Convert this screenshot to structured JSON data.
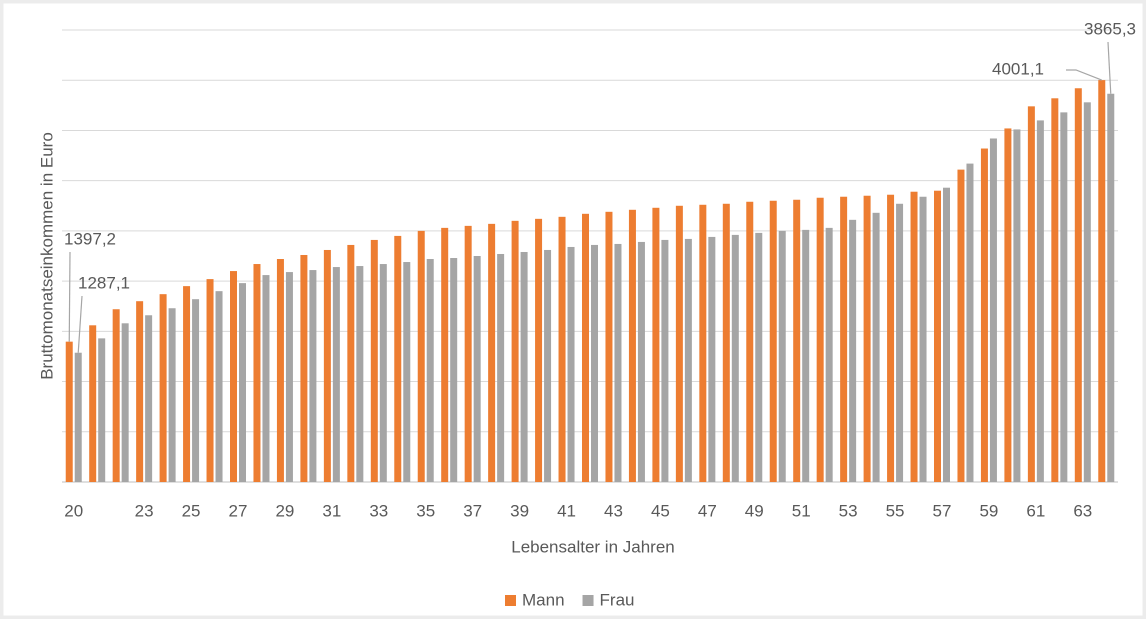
{
  "chart_data": {
    "type": "bar",
    "x_label": "Lebensalter in Jahren",
    "y_label": "Bruttomonatseinkommen in Euro",
    "categories": [
      "20",
      null,
      null,
      "23",
      null,
      "25",
      null,
      "27",
      null,
      "29",
      null,
      "31",
      null,
      "33",
      null,
      "35",
      null,
      "37",
      null,
      "39",
      null,
      "41",
      null,
      "43",
      null,
      "45",
      null,
      "47",
      null,
      "49",
      null,
      "51",
      null,
      "53",
      null,
      "55",
      null,
      "57",
      null,
      "59",
      null,
      "61",
      null,
      "63",
      null
    ],
    "series": [
      {
        "name": "Mann",
        "color": "#ed7d31",
        "values": [
          1397.2,
          1560,
          1720,
          1800,
          1870,
          1950,
          2020,
          2100,
          2170,
          2220,
          2260,
          2310,
          2360,
          2410,
          2450,
          2500,
          2530,
          2550,
          2570,
          2600,
          2620,
          2640,
          2670,
          2690,
          2710,
          2730,
          2750,
          2760,
          2770,
          2790,
          2800,
          2810,
          2830,
          2840,
          2850,
          2860,
          2890,
          2900,
          3110,
          3320,
          3520,
          3740,
          3820,
          3920,
          4001.1
        ],
        "value_labels": [
          "1397,2",
          null,
          null,
          null,
          null,
          null,
          null,
          null,
          null,
          null,
          null,
          null,
          null,
          null,
          null,
          null,
          null,
          null,
          null,
          null,
          null,
          null,
          null,
          null,
          null,
          null,
          null,
          null,
          null,
          null,
          null,
          null,
          null,
          null,
          null,
          null,
          null,
          null,
          null,
          null,
          null,
          null,
          null,
          null,
          "4001,1"
        ]
      },
      {
        "name": "Frau",
        "color": "#a5a5a5",
        "values": [
          1287.1,
          1430,
          1580,
          1660,
          1730,
          1820,
          1900,
          1980,
          2060,
          2090,
          2110,
          2140,
          2150,
          2170,
          2190,
          2220,
          2230,
          2250,
          2270,
          2290,
          2310,
          2340,
          2360,
          2370,
          2390,
          2410,
          2420,
          2440,
          2460,
          2480,
          2500,
          2510,
          2530,
          2610,
          2680,
          2770,
          2840,
          2930,
          3170,
          3420,
          3510,
          3600,
          3680,
          3780,
          3865.3
        ],
        "value_labels": [
          "1287,1",
          null,
          null,
          null,
          null,
          null,
          null,
          null,
          null,
          null,
          null,
          null,
          null,
          null,
          null,
          null,
          null,
          null,
          null,
          null,
          null,
          null,
          null,
          null,
          null,
          null,
          null,
          null,
          null,
          null,
          null,
          null,
          null,
          null,
          null,
          null,
          null,
          null,
          null,
          null,
          null,
          null,
          null,
          null,
          "3865,3"
        ]
      }
    ],
    "ylim": [
      0,
      4500
    ],
    "yticks": [
      0,
      500,
      1000,
      1500,
      2000,
      2500,
      3000,
      3500,
      4000,
      4500
    ],
    "grid": true,
    "legend": "bottom"
  }
}
